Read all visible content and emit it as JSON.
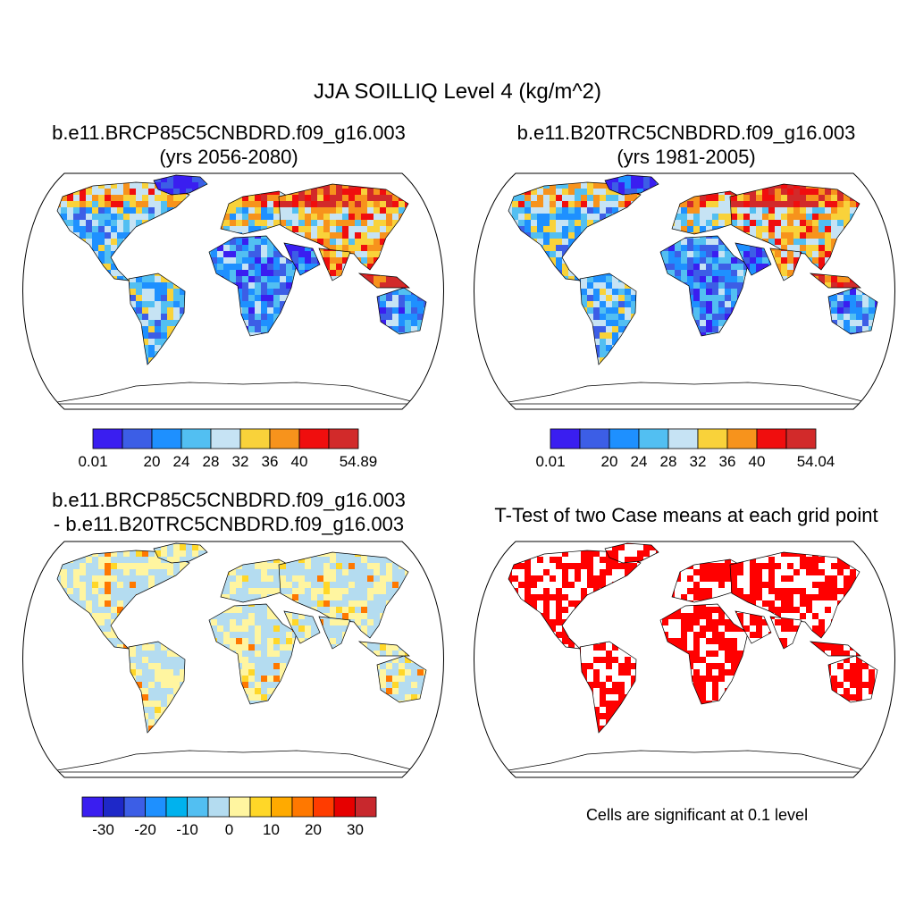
{
  "figure": {
    "title": "JJA SOILLIQ Level 4 (kg/m^2)"
  },
  "panels": [
    {
      "id": "case",
      "title_line1": "b.e11.BRCP85C5CNBDRD.f09_g16.003",
      "title_line2": "(yrs 2056-2080)"
    },
    {
      "id": "control",
      "title_line1": "b.e11.B20TRC5CNBDRD.f09_g16.003",
      "title_line2": "(yrs 1981-2005)"
    },
    {
      "id": "difference",
      "title_line1": "b.e11.BRCP85C5CNBDRD.f09_g16.003",
      "title_line2": "- b.e11.B20TRC5CNBDRD.f09_g16.003"
    },
    {
      "id": "ttest",
      "title_line1": "T-Test of two Case means at each grid point",
      "note": "Cells are significant at 0.1 level"
    }
  ],
  "colorbars": [
    {
      "id": "case",
      "colors": [
        "#3a1ef0",
        "#3c5ee6",
        "#1e90ff",
        "#52bff2",
        "#c6e3f4",
        "#f9d23a",
        "#f7931c",
        "#f00e0e",
        "#d22a2a"
      ],
      "labels": [
        "0.01",
        "20",
        "24",
        "28",
        "32",
        "36",
        "40",
        "54.89"
      ],
      "label_boundaries": [
        0,
        2,
        3,
        4,
        5,
        6,
        7,
        9
      ]
    },
    {
      "id": "control",
      "colors": [
        "#3a1ef0",
        "#3c5ee6",
        "#1e90ff",
        "#52bff2",
        "#c6e3f4",
        "#f9d23a",
        "#f7931c",
        "#f00e0e",
        "#d22a2a"
      ],
      "labels": [
        "0.01",
        "20",
        "24",
        "28",
        "32",
        "36",
        "40",
        "54.04"
      ],
      "label_boundaries": [
        0,
        2,
        3,
        4,
        5,
        6,
        7,
        9
      ]
    },
    {
      "id": "difference",
      "colors": [
        "#3a1ef0",
        "#1e28c8",
        "#3c5ee6",
        "#1e90ff",
        "#00b2ee",
        "#52bff2",
        "#b4dcf0",
        "#fff5a0",
        "#ffd728",
        "#ffaa00",
        "#ff7800",
        "#ff3c00",
        "#e60000",
        "#c8282d"
      ],
      "labels": [
        "-30",
        "-20",
        "-10",
        "0",
        "10",
        "20",
        "30"
      ],
      "label_boundaries": [
        1,
        3,
        5,
        7,
        9,
        11,
        13
      ]
    }
  ]
}
